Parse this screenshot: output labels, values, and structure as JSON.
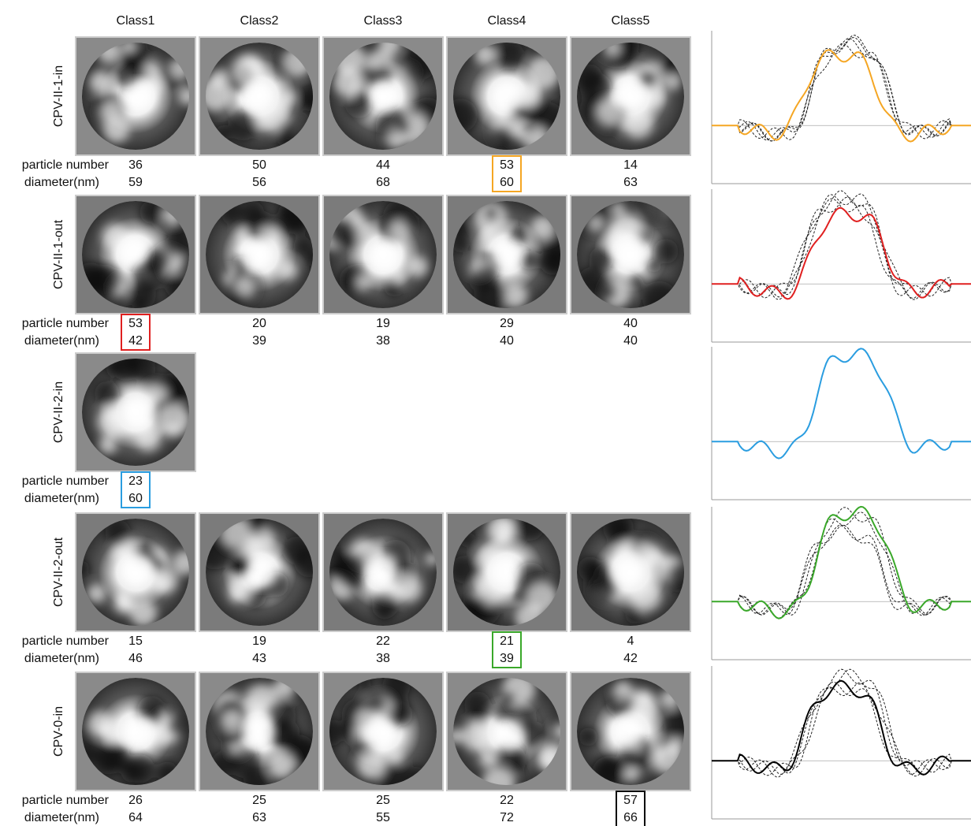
{
  "columns": [
    "Class1",
    "Class2",
    "Class3",
    "Class4",
    "Class5"
  ],
  "row_labels": {
    "particles": "particle number",
    "diameter": "diameter(nm)"
  },
  "groups": [
    {
      "name": "CPV-II-1-in",
      "particles": [
        36,
        50,
        44,
        53,
        14
      ],
      "diameters": [
        59,
        56,
        68,
        60,
        63
      ],
      "highlight": 3,
      "color": "#f5a623"
    },
    {
      "name": "CPV-II-1-out",
      "particles": [
        53,
        20,
        19,
        29,
        40
      ],
      "diameters": [
        42,
        39,
        38,
        40,
        40
      ],
      "highlight": 0,
      "color": "#e02020"
    },
    {
      "name": "CPV-II-2-in",
      "particles": [
        23
      ],
      "diameters": [
        60
      ],
      "highlight": 0,
      "color": "#2a9de0"
    },
    {
      "name": "CPV-II-2-out",
      "particles": [
        15,
        19,
        22,
        21,
        4
      ],
      "diameters": [
        46,
        43,
        38,
        39,
        42
      ],
      "highlight": 3,
      "color": "#3aa82a"
    },
    {
      "name": "CPV-0-in",
      "particles": [
        26,
        25,
        25,
        22,
        57
      ],
      "diameters": [
        64,
        63,
        55,
        72,
        66
      ],
      "highlight": 4,
      "color": "#000000"
    }
  ]
}
